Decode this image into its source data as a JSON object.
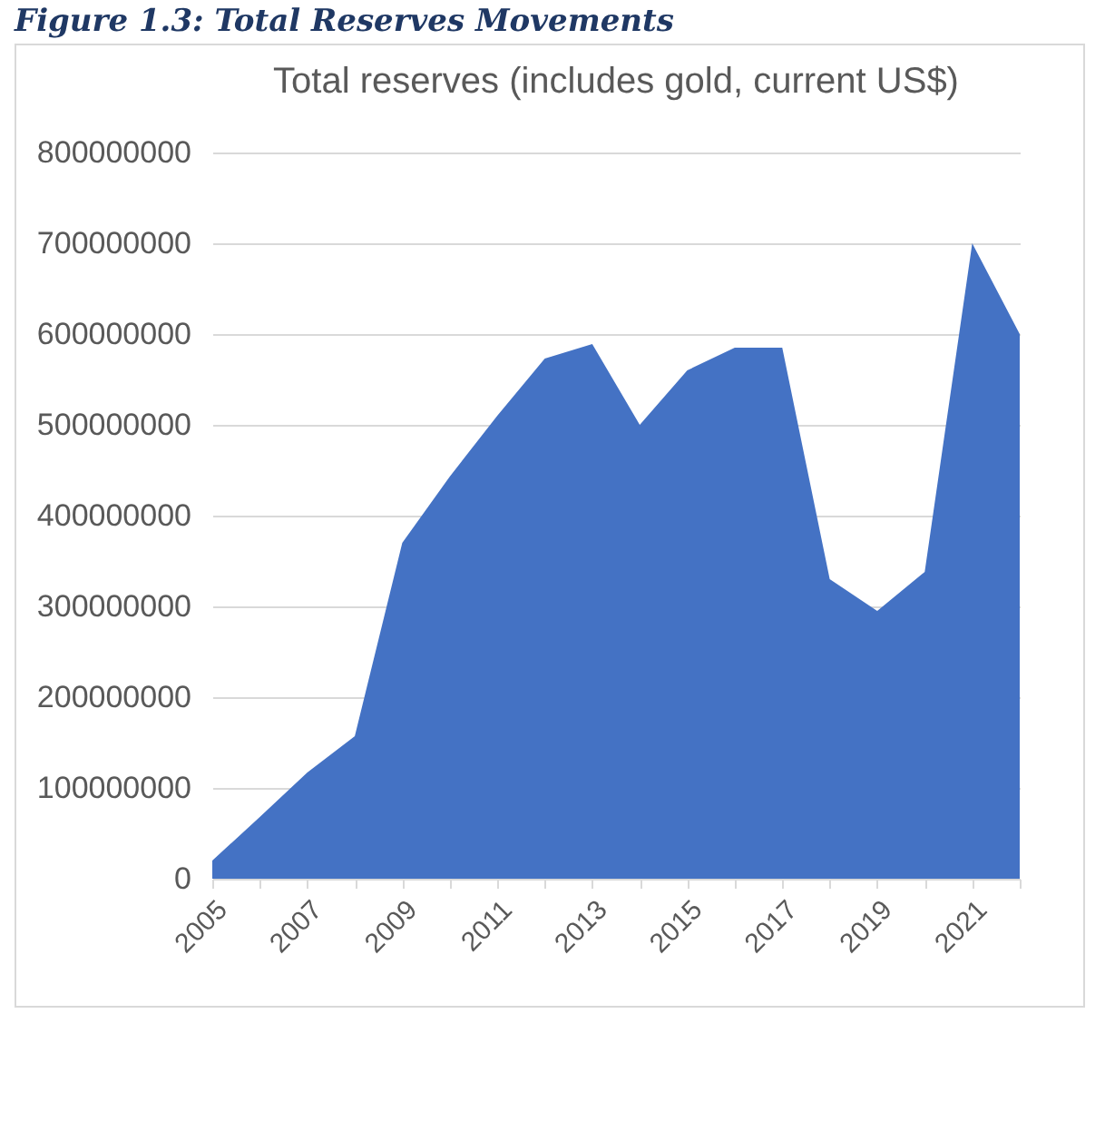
{
  "chart_data": {
    "type": "area",
    "title": "Total reserves (includes gold, current US$)",
    "annotations": [
      "Figure 1.3: Total Reserves Movements"
    ],
    "categories": [
      "2005",
      null,
      "2007",
      null,
      "2009",
      null,
      "2011",
      null,
      "2013",
      null,
      "2015",
      null,
      "2017",
      null,
      "2019",
      null,
      "2021",
      null
    ],
    "series": [
      {
        "color": "#4472c4",
        "values": [
          20000000,
          68000000,
          117000000,
          157000000,
          370000000,
          443000000,
          510000000,
          573000000,
          589000000,
          500000000,
          560000000,
          585000000,
          585000000,
          330000000,
          295000000,
          338000000,
          700000000,
          600000000
        ]
      }
    ],
    "ylim": [
      0,
      800000000
    ],
    "yticks": [
      0,
      100000000,
      200000000,
      300000000,
      400000000,
      500000000,
      600000000,
      700000000,
      800000000
    ],
    "grid": "y"
  }
}
